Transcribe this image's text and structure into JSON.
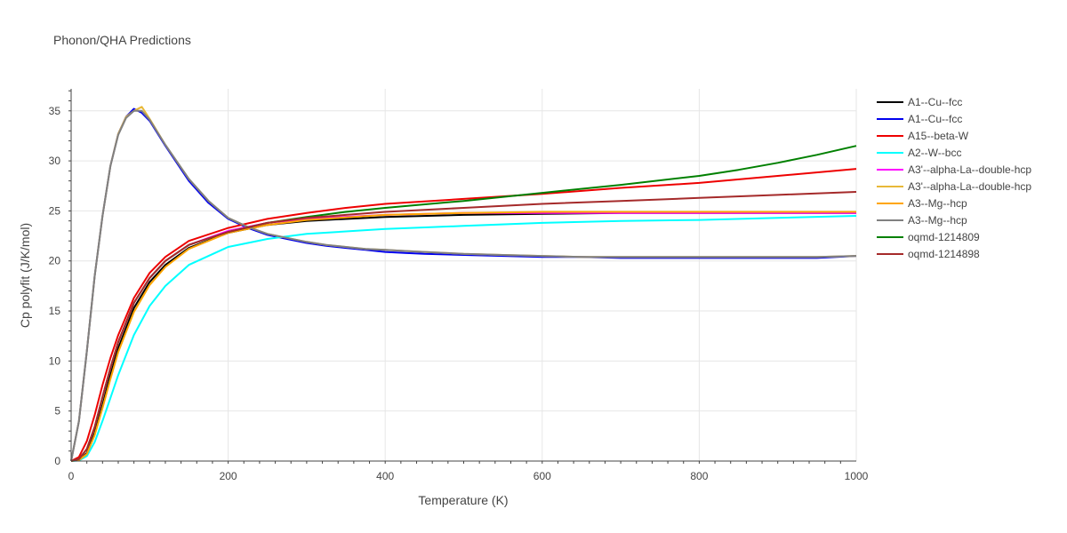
{
  "chart_data": {
    "type": "line",
    "title": "Phonon/QHA Predictions",
    "xlabel": "Temperature (K)",
    "ylabel": "Cp polyfit (J/K/mol)",
    "xlim": [
      0,
      1000
    ],
    "ylim": [
      0,
      37.2
    ],
    "xticks": [
      0,
      200,
      400,
      600,
      800,
      1000
    ],
    "yticks": [
      0,
      5,
      10,
      15,
      20,
      25,
      30,
      35
    ],
    "grid": true,
    "legend_position": "right",
    "series": [
      {
        "name": "A1--Cu--fcc",
        "color": "#000000",
        "x": [
          0,
          10,
          20,
          30,
          40,
          50,
          60,
          80,
          100,
          120,
          150,
          200,
          250,
          300,
          400,
          500,
          600,
          700,
          800,
          900,
          1000
        ],
        "y": [
          0,
          0.1,
          0.8,
          2.8,
          5.6,
          8.6,
          11.3,
          15.3,
          17.9,
          19.6,
          21.3,
          22.8,
          23.6,
          24.0,
          24.4,
          24.6,
          24.7,
          24.8,
          24.8,
          24.8,
          24.8
        ]
      },
      {
        "name": "A1--Cu--fcc",
        "color": "#0000ee",
        "x": [
          0,
          10,
          20,
          30,
          40,
          50,
          60,
          70,
          80,
          90,
          100,
          120,
          150,
          175,
          200,
          225,
          250,
          275,
          300,
          325,
          350,
          375,
          400,
          425,
          450,
          500,
          550,
          600,
          650,
          700,
          750,
          800,
          850,
          900,
          950,
          1000
        ],
        "y": [
          0,
          4.0,
          11.0,
          18.5,
          24.5,
          29.5,
          32.7,
          34.4,
          35.2,
          34.8,
          34.0,
          31.5,
          28.0,
          25.8,
          24.2,
          23.3,
          22.6,
          22.2,
          21.8,
          21.5,
          21.3,
          21.1,
          20.9,
          20.8,
          20.7,
          20.6,
          20.5,
          20.4,
          20.4,
          20.3,
          20.3,
          20.3,
          20.3,
          20.3,
          20.3,
          20.5
        ]
      },
      {
        "name": "A15--beta-W",
        "color": "#ee0000",
        "x": [
          0,
          10,
          20,
          30,
          40,
          50,
          60,
          80,
          100,
          120,
          150,
          200,
          250,
          300,
          350,
          400,
          500,
          600,
          700,
          800,
          900,
          1000
        ],
        "y": [
          0,
          0.4,
          2.0,
          4.6,
          7.6,
          10.3,
          12.6,
          16.3,
          18.8,
          20.4,
          22.0,
          23.3,
          24.2,
          24.8,
          25.3,
          25.7,
          26.2,
          26.7,
          27.3,
          27.8,
          28.5,
          29.2
        ]
      },
      {
        "name": "A2--W--bcc",
        "color": "#00ffff",
        "x": [
          0,
          10,
          20,
          30,
          40,
          50,
          60,
          80,
          100,
          120,
          150,
          200,
          250,
          300,
          400,
          500,
          600,
          700,
          800,
          900,
          1000
        ],
        "y": [
          0,
          0.05,
          0.5,
          1.9,
          4.0,
          6.3,
          8.6,
          12.6,
          15.5,
          17.5,
          19.6,
          21.4,
          22.2,
          22.7,
          23.2,
          23.5,
          23.8,
          24.0,
          24.1,
          24.3,
          24.5
        ]
      },
      {
        "name": "A3'--alpha-La--double-hcp",
        "color": "#ff00ff",
        "x": [
          0,
          10,
          20,
          30,
          40,
          50,
          60,
          80,
          100,
          120,
          150,
          200,
          250,
          300,
          400,
          500,
          600,
          700,
          800,
          900,
          1000
        ],
        "y": [
          0,
          0.2,
          1.2,
          3.4,
          6.4,
          9.3,
          11.9,
          15.8,
          18.3,
          20.0,
          21.6,
          23.0,
          23.8,
          24.2,
          24.6,
          24.8,
          24.8,
          24.8,
          24.8,
          24.8,
          24.8
        ]
      },
      {
        "name": "A3'--alpha-La--double-hcp",
        "color": "#e8b838",
        "x": [
          0,
          10,
          20,
          30,
          40,
          50,
          60,
          70,
          80,
          90,
          100,
          120,
          150,
          175,
          200,
          225,
          250,
          275,
          300,
          325,
          350,
          375,
          400,
          425,
          450,
          500,
          550,
          600,
          650,
          700,
          750,
          800,
          850,
          900,
          950,
          1000
        ],
        "y": [
          0,
          4.0,
          11.0,
          18.5,
          24.5,
          29.5,
          32.7,
          34.4,
          35.0,
          35.4,
          34.2,
          31.6,
          28.2,
          26.0,
          24.3,
          23.4,
          22.7,
          22.3,
          21.9,
          21.6,
          21.4,
          21.2,
          21.1,
          21.0,
          20.9,
          20.7,
          20.6,
          20.5,
          20.4,
          20.4,
          20.4,
          20.4,
          20.4,
          20.4,
          20.4,
          20.5
        ]
      },
      {
        "name": "A3--Mg--hcp",
        "color": "#ffa500",
        "x": [
          0,
          10,
          20,
          30,
          40,
          50,
          60,
          80,
          100,
          120,
          150,
          200,
          250,
          300,
          400,
          500,
          600,
          700,
          800,
          900,
          1000
        ],
        "y": [
          0,
          0.1,
          0.7,
          2.6,
          5.3,
          8.2,
          10.9,
          14.9,
          17.6,
          19.4,
          21.2,
          22.8,
          23.6,
          24.1,
          24.6,
          24.8,
          24.9,
          24.9,
          24.9,
          24.9,
          24.9
        ]
      },
      {
        "name": "A3--Mg--hcp",
        "color": "#808080",
        "x": [
          0,
          10,
          20,
          30,
          40,
          50,
          60,
          70,
          80,
          90,
          100,
          120,
          150,
          175,
          200,
          225,
          250,
          275,
          300,
          325,
          350,
          375,
          400,
          425,
          450,
          500,
          550,
          600,
          650,
          700,
          750,
          800,
          850,
          900,
          950,
          1000
        ],
        "y": [
          0,
          4.0,
          11.0,
          18.5,
          24.5,
          29.5,
          32.6,
          34.3,
          35.0,
          35.0,
          34.1,
          31.6,
          28.2,
          26.0,
          24.3,
          23.4,
          22.7,
          22.3,
          21.9,
          21.6,
          21.4,
          21.2,
          21.1,
          21.0,
          20.9,
          20.7,
          20.6,
          20.5,
          20.4,
          20.4,
          20.4,
          20.4,
          20.4,
          20.4,
          20.4,
          20.5
        ]
      },
      {
        "name": "oqmd-1214809",
        "color": "#008000",
        "x": [
          0,
          10,
          20,
          30,
          40,
          50,
          60,
          80,
          100,
          120,
          150,
          200,
          250,
          300,
          350,
          400,
          500,
          600,
          700,
          800,
          850,
          900,
          950,
          1000
        ],
        "y": [
          0,
          0.2,
          1.2,
          3.4,
          6.4,
          9.3,
          11.9,
          15.8,
          18.3,
          20.0,
          21.6,
          22.9,
          23.8,
          24.4,
          24.9,
          25.3,
          26.0,
          26.8,
          27.6,
          28.5,
          29.1,
          29.8,
          30.6,
          31.5
        ]
      },
      {
        "name": "oqmd-1214898",
        "color": "#a52a2a",
        "x": [
          0,
          10,
          20,
          30,
          40,
          50,
          60,
          80,
          100,
          120,
          150,
          200,
          250,
          300,
          400,
          500,
          600,
          700,
          800,
          900,
          1000
        ],
        "y": [
          0,
          0.2,
          1.2,
          3.4,
          6.4,
          9.3,
          11.9,
          15.8,
          18.3,
          20.0,
          21.6,
          22.9,
          23.8,
          24.3,
          24.9,
          25.3,
          25.7,
          26.0,
          26.3,
          26.6,
          26.9
        ]
      }
    ]
  }
}
